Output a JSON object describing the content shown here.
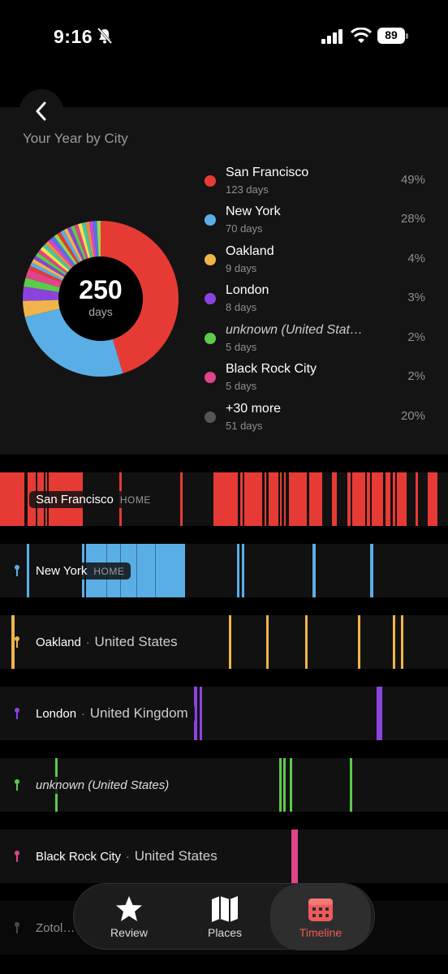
{
  "status": {
    "time": "9:16",
    "battery": "89"
  },
  "card": {
    "title": "Your Year by City",
    "total_number": "250",
    "total_unit": "days"
  },
  "colors": {
    "san_francisco": "#e63b34",
    "new_york": "#5aaee6",
    "oakland": "#f0b44a",
    "london": "#8a44dd",
    "unknown": "#5ccb4a",
    "black_rock_city": "#e0448a",
    "more": "#555555"
  },
  "legend": [
    {
      "name": "San Francisco",
      "days": "123 days",
      "pct": "49%",
      "color": "#e63b34"
    },
    {
      "name": "New York",
      "days": "70 days",
      "pct": "28%",
      "color": "#5aaee6"
    },
    {
      "name": "Oakland",
      "days": "9 days",
      "pct": "4%",
      "color": "#f0b44a"
    },
    {
      "name": "London",
      "days": "8 days",
      "pct": "3%",
      "color": "#8a44dd"
    },
    {
      "name": "unknown (United Stat…",
      "days": "5 days",
      "pct": "2%",
      "color": "#5ccb4a"
    },
    {
      "name": "Black Rock City",
      "days": "5 days",
      "pct": "2%",
      "color": "#e0448a"
    },
    {
      "name": "+30 more",
      "days": "51 days",
      "pct": "20%",
      "color": "#555555"
    }
  ],
  "chart_data": {
    "type": "pie",
    "categories": [
      "San Francisco",
      "New York",
      "Oakland",
      "London",
      "unknown (United States)",
      "Black Rock City",
      "+30 more"
    ],
    "values": [
      123,
      70,
      9,
      8,
      5,
      5,
      51
    ],
    "title": "Your Year by City"
  },
  "timeline": [
    {
      "city": "San Francisco",
      "country": "",
      "home": "HOME",
      "color": "#e63b34",
      "italic": false
    },
    {
      "city": "New York",
      "country": "",
      "home": "HOME",
      "color": "#5aaee6",
      "italic": false
    },
    {
      "city": "Oakland",
      "country": "United States",
      "home": "",
      "color": "#f0b44a",
      "italic": false
    },
    {
      "city": "London",
      "country": "United Kingdom",
      "home": "",
      "color": "#8a44dd",
      "italic": false
    },
    {
      "city": "unknown (United States)",
      "country": "",
      "home": "",
      "color": "#5ccb4a",
      "italic": true
    },
    {
      "city": "Black Rock City",
      "country": "United States",
      "home": "",
      "color": "#e0448a",
      "italic": false
    },
    {
      "city": "Zotol…",
      "country": "",
      "home": "",
      "color": "#888888",
      "italic": false
    }
  ],
  "tabs": [
    {
      "label": "Review",
      "icon": "star-icon"
    },
    {
      "label": "Places",
      "icon": "map-icon"
    },
    {
      "label": "Timeline",
      "icon": "calendar-icon",
      "active": true
    }
  ]
}
